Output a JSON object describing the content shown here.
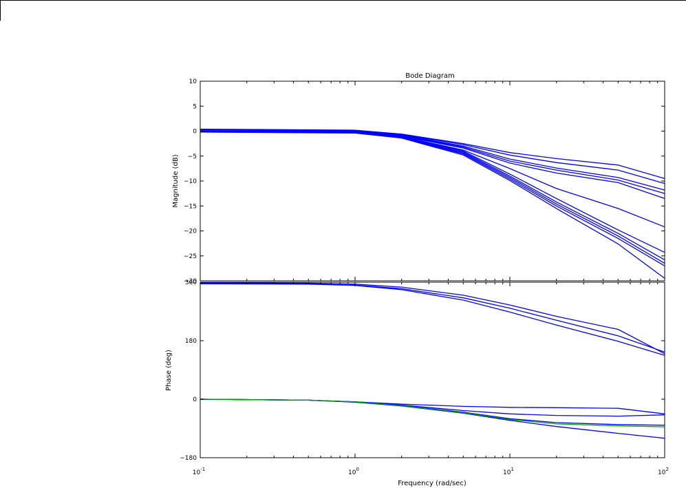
{
  "chart_data": {
    "type": "line",
    "title": "Bode Diagram",
    "xlabel": "Frequency  (rad/sec)",
    "xscale": "log",
    "xlim": [
      0.1,
      100
    ],
    "x_ticks": [
      {
        "value": 0.1,
        "base": "10",
        "exp": "-1"
      },
      {
        "value": 1,
        "base": "10",
        "exp": "0"
      },
      {
        "value": 10,
        "base": "10",
        "exp": "1"
      },
      {
        "value": 100,
        "base": "10",
        "exp": "2"
      }
    ],
    "grid": false,
    "panels": [
      {
        "id": "magnitude",
        "ylabel": "Magnitude (dB)",
        "ylim": [
          -30,
          10
        ],
        "yticks": [
          10,
          5,
          0,
          -5,
          -10,
          -15,
          -20,
          -25,
          -30
        ],
        "ytick_labels": [
          "10",
          "5",
          "0",
          "−5",
          "−10",
          "−15",
          "−20",
          "−25",
          "−30"
        ],
        "color": "#0000ff",
        "series": [
          {
            "points": [
              [
                0.1,
                0.4
              ],
              [
                1,
                0.2
              ],
              [
                2,
                -0.6
              ],
              [
                5,
                -2.5
              ],
              [
                10,
                -4.3
              ],
              [
                20,
                -5.5
              ],
              [
                50,
                -6.8
              ],
              [
                100,
                -9.5
              ]
            ]
          },
          {
            "points": [
              [
                0.1,
                0.3
              ],
              [
                1,
                0.1
              ],
              [
                2,
                -0.7
              ],
              [
                5,
                -2.7
              ],
              [
                10,
                -4.8
              ],
              [
                20,
                -6.3
              ],
              [
                50,
                -7.8
              ],
              [
                100,
                -10.5
              ]
            ]
          },
          {
            "points": [
              [
                0.1,
                0.1
              ],
              [
                1,
                0
              ],
              [
                2,
                -0.8
              ],
              [
                5,
                -3.0
              ],
              [
                10,
                -5.6
              ],
              [
                20,
                -7.4
              ],
              [
                50,
                -9.3
              ],
              [
                100,
                -11.8
              ]
            ]
          },
          {
            "points": [
              [
                0.1,
                0
              ],
              [
                1,
                -0.1
              ],
              [
                2,
                -0.9
              ],
              [
                5,
                -3.2
              ],
              [
                10,
                -6.0
              ],
              [
                20,
                -7.8
              ],
              [
                50,
                -9.8
              ],
              [
                100,
                -12.5
              ]
            ]
          },
          {
            "points": [
              [
                0.1,
                -0.1
              ],
              [
                1,
                -0.1
              ],
              [
                2,
                -1.0
              ],
              [
                5,
                -3.4
              ],
              [
                10,
                -6.4
              ],
              [
                20,
                -8.4
              ],
              [
                50,
                -10.3
              ],
              [
                100,
                -13.5
              ]
            ]
          },
          {
            "points": [
              [
                0.1,
                -0.2
              ],
              [
                1,
                -0.2
              ],
              [
                2,
                -1.1
              ],
              [
                5,
                -3.8
              ],
              [
                10,
                -7.5
              ],
              [
                20,
                -11.5
              ],
              [
                50,
                -15.5
              ],
              [
                100,
                -19.2
              ]
            ]
          },
          {
            "points": [
              [
                0.1,
                0
              ],
              [
                1,
                -0.2
              ],
              [
                2,
                -1.1
              ],
              [
                5,
                -4.0
              ],
              [
                10,
                -8.6
              ],
              [
                20,
                -13.5
              ],
              [
                50,
                -19.8
              ],
              [
                100,
                -24.3
              ]
            ]
          },
          {
            "points": [
              [
                0.1,
                0
              ],
              [
                1,
                -0.2
              ],
              [
                2,
                -1.2
              ],
              [
                5,
                -4.2
              ],
              [
                10,
                -9.0
              ],
              [
                20,
                -14.2
              ],
              [
                50,
                -20.5
              ],
              [
                100,
                -25.8
              ]
            ]
          },
          {
            "points": [
              [
                0.1,
                -0.1
              ],
              [
                1,
                -0.3
              ],
              [
                2,
                -1.3
              ],
              [
                5,
                -4.4
              ],
              [
                10,
                -9.3
              ],
              [
                20,
                -14.6
              ],
              [
                50,
                -21.0
              ],
              [
                100,
                -26.5
              ]
            ]
          },
          {
            "points": [
              [
                0.1,
                -0.2
              ],
              [
                1,
                -0.3
              ],
              [
                2,
                -1.3
              ],
              [
                5,
                -4.6
              ],
              [
                10,
                -9.6
              ],
              [
                20,
                -15.0
              ],
              [
                50,
                -21.5
              ],
              [
                100,
                -27.0
              ]
            ]
          },
          {
            "points": [
              [
                0.1,
                -0.2
              ],
              [
                1,
                -0.4
              ],
              [
                2,
                -1.4
              ],
              [
                5,
                -4.8
              ],
              [
                10,
                -9.9
              ],
              [
                20,
                -15.5
              ],
              [
                50,
                -22.6
              ],
              [
                100,
                -29.5
              ]
            ]
          }
        ]
      },
      {
        "id": "phase",
        "ylabel": "Phase (deg)",
        "ylim": [
          -180,
          360
        ],
        "yticks": [
          360,
          180,
          0,
          -180
        ],
        "ytick_labels": [
          "360",
          "180",
          "0",
          "−180"
        ],
        "color": "#0000ff",
        "series": [
          {
            "points": [
              [
                0.1,
                358
              ],
              [
                0.5,
                357
              ],
              [
                1,
                354
              ],
              [
                2,
                345
              ],
              [
                5,
                320
              ],
              [
                10,
                290
              ],
              [
                20,
                255
              ],
              [
                50,
                215
              ],
              [
                100,
                140
              ]
            ]
          },
          {
            "points": [
              [
                0.1,
                356
              ],
              [
                0.5,
                355
              ],
              [
                1,
                351
              ],
              [
                2,
                340
              ],
              [
                5,
                312
              ],
              [
                10,
                280
              ],
              [
                20,
                243
              ],
              [
                50,
                195
              ],
              [
                100,
                145
              ]
            ]
          },
          {
            "points": [
              [
                0.1,
                355
              ],
              [
                0.5,
                354
              ],
              [
                1,
                350
              ],
              [
                2,
                337
              ],
              [
                5,
                305
              ],
              [
                10,
                268
              ],
              [
                20,
                228
              ],
              [
                50,
                178
              ],
              [
                100,
                135
              ]
            ]
          },
          {
            "points": [
              [
                0.1,
                0
              ],
              [
                0.5,
                -3
              ],
              [
                1,
                -8
              ],
              [
                2,
                -15
              ],
              [
                5,
                -22
              ],
              [
                10,
                -25
              ],
              [
                20,
                -26
              ],
              [
                50,
                -28
              ],
              [
                100,
                -45
              ]
            ]
          },
          {
            "points": [
              [
                0.1,
                0
              ],
              [
                0.5,
                -3
              ],
              [
                1,
                -8
              ],
              [
                2,
                -18
              ],
              [
                5,
                -35
              ],
              [
                10,
                -45
              ],
              [
                20,
                -50
              ],
              [
                50,
                -52
              ],
              [
                100,
                -48
              ]
            ]
          },
          {
            "points": [
              [
                0.1,
                0
              ],
              [
                0.5,
                -3
              ],
              [
                1,
                -9
              ],
              [
                2,
                -20
              ],
              [
                5,
                -40
              ],
              [
                10,
                -60
              ],
              [
                20,
                -72
              ],
              [
                50,
                -78
              ],
              [
                100,
                -80
              ]
            ]
          },
          {
            "points": [
              [
                0.1,
                0
              ],
              [
                0.5,
                -3
              ],
              [
                1,
                -9
              ],
              [
                2,
                -21
              ],
              [
                5,
                -43
              ],
              [
                10,
                -65
              ],
              [
                20,
                -84
              ],
              [
                50,
                -105
              ],
              [
                100,
                -120
              ]
            ]
          },
          {
            "points": [
              [
                0.1,
                0
              ],
              [
                0.5,
                -3
              ],
              [
                1,
                -8
              ],
              [
                2,
                -20
              ],
              [
                5,
                -42
              ],
              [
                10,
                -62
              ],
              [
                20,
                -76
              ],
              [
                50,
                -82
              ],
              [
                100,
                -85
              ]
            ],
            "color": "#00a000"
          }
        ]
      }
    ]
  }
}
